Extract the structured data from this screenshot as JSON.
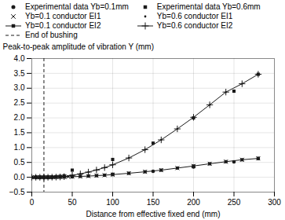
{
  "chart_data": {
    "type": "line",
    "xlabel": "Distance from effective fixed end (mm)",
    "ylabel": "Peak-to-peak amplitude of vibration Y (mm)",
    "xlim": [
      0,
      300
    ],
    "ylim": [
      -0.5,
      4.0
    ],
    "xticks": [
      0,
      50,
      100,
      150,
      200,
      250,
      300
    ],
    "yticks": [
      {
        "value": -0.5,
        "label": "−0.5"
      },
      {
        "value": 0.0,
        "label": "0.0"
      },
      0.5,
      {
        "value": 1.0,
        "label": "1.0"
      },
      1.5,
      {
        "value": 2.0,
        "label": "2.0"
      },
      2.5,
      {
        "value": 3.0,
        "label": "3.0"
      },
      3.5,
      {
        "value": 4.0,
        "label": "4.0"
      }
    ],
    "grid": true,
    "legend": "upper left",
    "series": [
      {
        "name": "Experimental data Yb=0.1mm",
        "type": "scatter",
        "marker": "circle",
        "line_style": "none",
        "color": "#1a1a1a",
        "x": [
          5,
          10,
          15,
          20,
          25,
          30,
          35,
          40,
          50,
          100,
          150,
          200,
          250,
          280
        ],
        "values": [
          0.0,
          0.0,
          0.0,
          0.0,
          0.005,
          0.008,
          0.01,
          0.015,
          0.025,
          0.1,
          0.2,
          0.35,
          0.52,
          0.63
        ]
      },
      {
        "name": "Experimental data Yb=0.6mm",
        "type": "scatter",
        "marker": "square",
        "line_style": "none",
        "color": "#1a1a1a",
        "x": [
          5,
          10,
          15,
          20,
          25,
          30,
          35,
          40,
          50,
          100,
          150,
          200,
          250,
          280
        ],
        "values": [
          0.0,
          0.0,
          0.0,
          0.005,
          0.01,
          0.02,
          0.03,
          0.05,
          0.24,
          0.6,
          1.15,
          2.0,
          2.9,
          3.47
        ]
      },
      {
        "name": "Yb=0.1 conductor EI1",
        "type": "scatter",
        "marker": "x",
        "line_style": "none",
        "color": "#1a1a1a",
        "x": [
          0,
          2,
          4,
          6,
          8,
          10,
          12,
          14,
          16,
          18,
          20,
          22,
          24,
          26,
          28,
          30,
          35,
          40,
          45,
          50,
          60,
          70,
          80,
          90,
          100,
          120,
          140,
          160,
          180,
          200,
          220,
          240,
          260,
          280
        ],
        "values": [
          0.0,
          0.0,
          0.0,
          0.0,
          0.0,
          0.0,
          0.0,
          0.0,
          0.0,
          0.0,
          0.0,
          0.0,
          0.0,
          0.003,
          0.005,
          0.007,
          0.01,
          0.013,
          0.016,
          0.02,
          0.03,
          0.04,
          0.055,
          0.07,
          0.09,
          0.135,
          0.185,
          0.24,
          0.31,
          0.38,
          0.455,
          0.525,
          0.59,
          0.635
        ]
      },
      {
        "name": "Yb=0.6 conductor EI1",
        "type": "scatter",
        "marker": "dot",
        "line_style": "none",
        "color": "#1a1a1a",
        "x": [
          0,
          2,
          4,
          6,
          8,
          10,
          12,
          14,
          16,
          18,
          20,
          22,
          24,
          26,
          28,
          30,
          35,
          40,
          45,
          50,
          60,
          70,
          80,
          90,
          100,
          120,
          140,
          160,
          180,
          200,
          220,
          240,
          260,
          280
        ],
        "values": [
          0.0,
          0.0,
          0.0,
          0.0,
          0.0,
          0.0,
          0.0,
          0.0,
          0.0,
          0.0,
          0.0,
          0.0,
          0.0,
          0.003,
          0.005,
          0.008,
          0.015,
          0.025,
          0.04,
          0.065,
          0.115,
          0.175,
          0.245,
          0.325,
          0.42,
          0.65,
          0.93,
          1.26,
          1.63,
          2.02,
          2.44,
          2.87,
          3.15,
          3.47
        ]
      },
      {
        "name": "Yb=0.1 conductor EI2",
        "type": "line",
        "marker": "square",
        "line_style": "solid",
        "color": "#1a1a1a",
        "x": [
          0,
          5,
          10,
          15,
          20,
          25,
          30,
          35,
          40,
          50,
          60,
          70,
          80,
          90,
          100,
          120,
          140,
          160,
          180,
          200,
          220,
          240,
          260,
          280
        ],
        "values": [
          0.0,
          0.0,
          0.0,
          0.0,
          0.0,
          0.003,
          0.006,
          0.009,
          0.013,
          0.02,
          0.03,
          0.04,
          0.055,
          0.07,
          0.09,
          0.135,
          0.185,
          0.24,
          0.31,
          0.38,
          0.455,
          0.525,
          0.59,
          0.635
        ]
      },
      {
        "name": "Yb=0.6 conductor EI2",
        "type": "line",
        "marker": "plus",
        "line_style": "solid",
        "color": "#1a1a1a",
        "x": [
          0,
          5,
          10,
          15,
          20,
          25,
          30,
          35,
          40,
          50,
          60,
          70,
          80,
          90,
          100,
          120,
          140,
          160,
          180,
          200,
          220,
          240,
          260,
          280
        ],
        "values": [
          0.0,
          0.0,
          0.0,
          0.0,
          0.0,
          0.003,
          0.006,
          0.01,
          0.02,
          0.065,
          0.115,
          0.175,
          0.245,
          0.325,
          0.42,
          0.65,
          0.93,
          1.26,
          1.63,
          2.02,
          2.44,
          2.87,
          3.15,
          3.47
        ]
      },
      {
        "name": "End of bushing",
        "type": "vline",
        "line_style": "dashed",
        "color": "#1a1a1a",
        "x": 15
      }
    ]
  }
}
